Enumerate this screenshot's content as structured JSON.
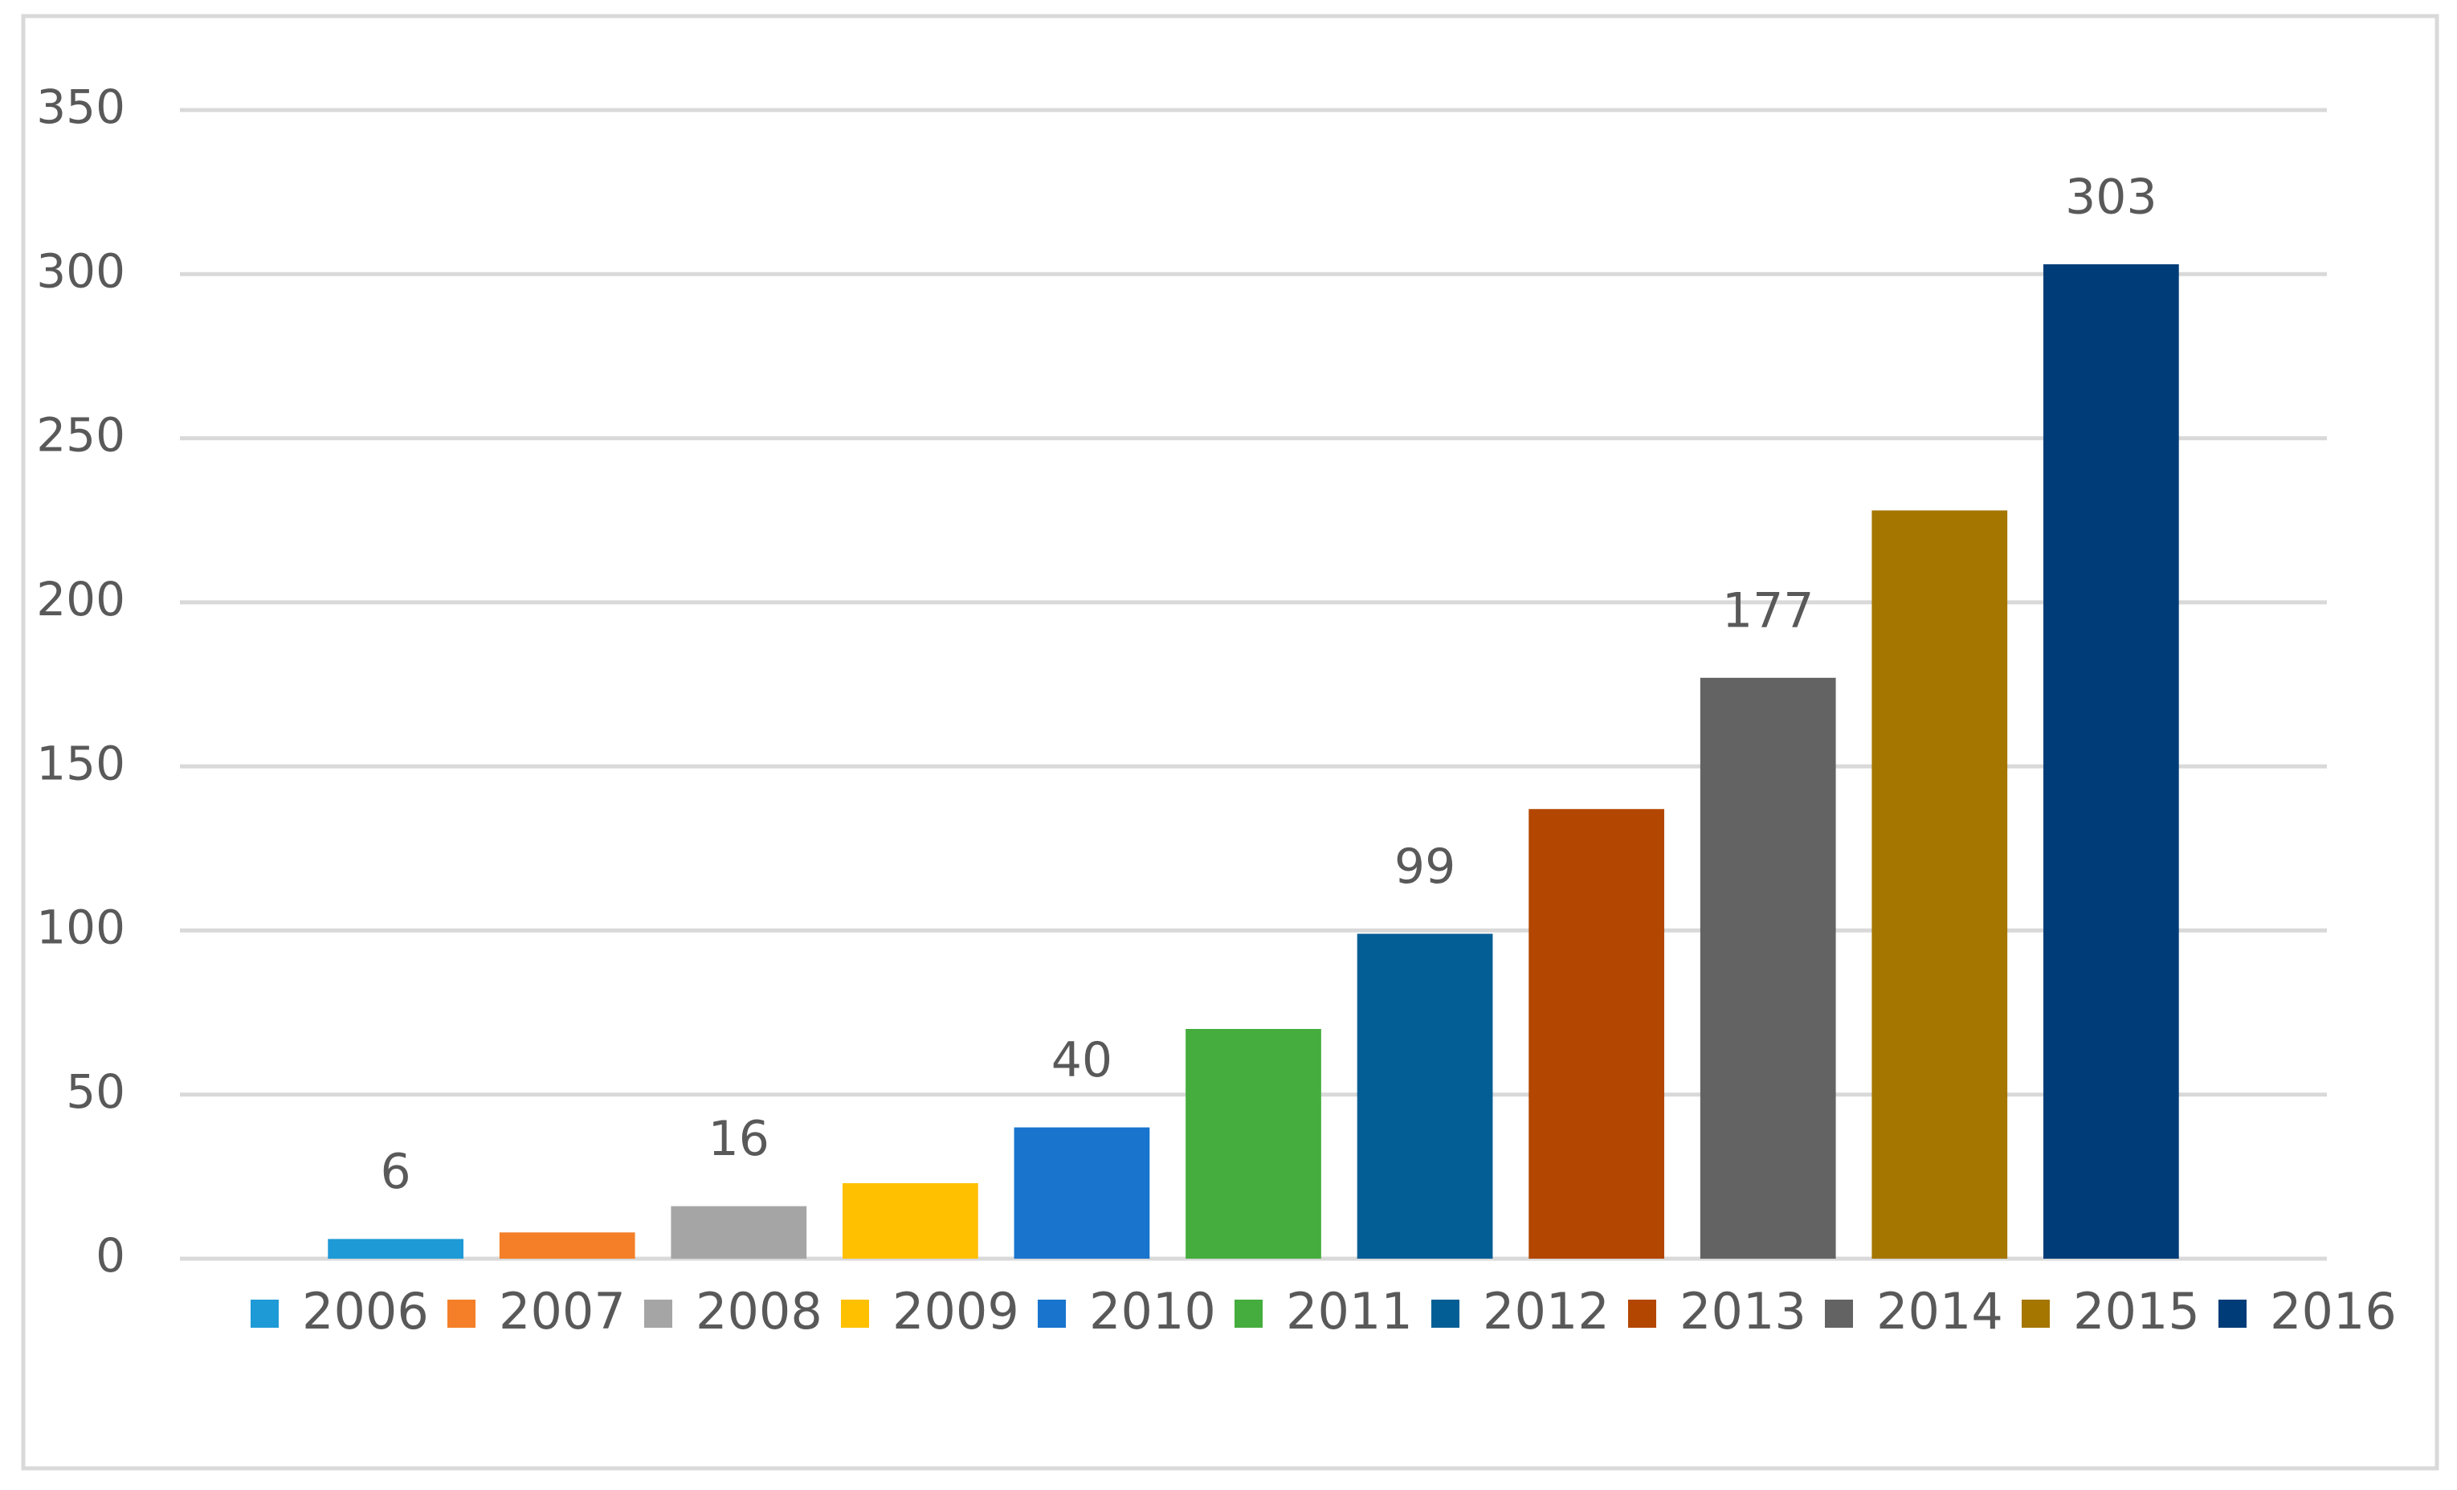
{
  "chart_data": {
    "type": "bar",
    "categories": [
      null
    ],
    "series": [
      {
        "name": "2006",
        "color": "#1e9ad6",
        "values": [
          6
        ],
        "show_value_label": true
      },
      {
        "name": "2007",
        "color": "#f47f28",
        "values": [
          8
        ],
        "show_value_label": false
      },
      {
        "name": "2008",
        "color": "#a5a5a5",
        "values": [
          16
        ],
        "show_value_label": true
      },
      {
        "name": "2009",
        "color": "#ffc000",
        "values": [
          23
        ],
        "show_value_label": false
      },
      {
        "name": "2010",
        "color": "#1874cd",
        "values": [
          40
        ],
        "show_value_label": true
      },
      {
        "name": "2011",
        "color": "#45ad3e",
        "values": [
          70
        ],
        "show_value_label": false
      },
      {
        "name": "2012",
        "color": "#035e95",
        "values": [
          99
        ],
        "show_value_label": true
      },
      {
        "name": "2013",
        "color": "#b34600",
        "values": [
          137
        ],
        "show_value_label": false
      },
      {
        "name": "2014",
        "color": "#636363",
        "values": [
          177
        ],
        "show_value_label": true
      },
      {
        "name": "2015",
        "color": "#a57600",
        "values": [
          228
        ],
        "show_value_label": false
      },
      {
        "name": "2016",
        "color": "#003c78",
        "values": [
          303
        ],
        "show_value_label": true
      }
    ],
    "ylim": [
      0,
      350
    ],
    "yticks": [
      0,
      50,
      100,
      150,
      200,
      250,
      300,
      350
    ],
    "grid": true,
    "legend": "bottom"
  }
}
